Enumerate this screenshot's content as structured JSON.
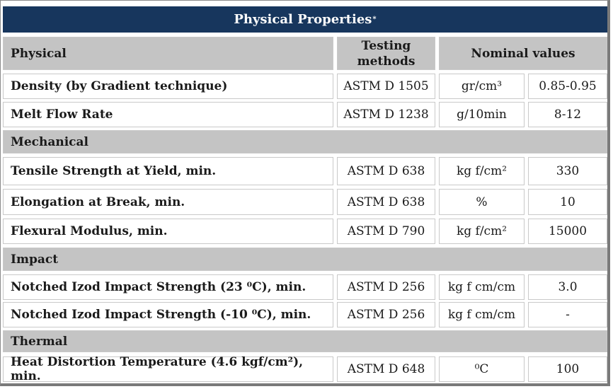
{
  "table": {
    "title": "Physical Properties",
    "title_mark": "*",
    "header": {
      "property": "Physical",
      "method": "Testing methods",
      "values": "Nominal values"
    },
    "sections": [
      {
        "name": "Physical",
        "rows": [
          {
            "property": "Density (by Gradient technique)",
            "method": "ASTM D 1505",
            "unit": "gr/cm³",
            "value": "0.85-0.95"
          },
          {
            "property": "Melt Flow Rate",
            "method": "ASTM D 1238",
            "unit": "g/10min",
            "value": "8-12"
          }
        ]
      },
      {
        "name": "Mechanical",
        "rows": [
          {
            "property": "Tensile Strength at Yield, min.",
            "method": "ASTM D 638",
            "unit": "kg f/cm²",
            "value": "330"
          },
          {
            "property": "Elongation at Break, min.",
            "method": "ASTM D 638",
            "unit": "%",
            "value": "10"
          },
          {
            "property": "Flexural Modulus, min.",
            "method": "ASTM D 790",
            "unit": "kg f/cm²",
            "value": "15000"
          }
        ]
      },
      {
        "name": "Impact",
        "rows": [
          {
            "property": "Notched Izod Impact Strength (23 ⁰C), min.",
            "method": "ASTM D 256",
            "unit": "kg f cm/cm",
            "value": "3.0"
          },
          {
            "property": "Notched Izod Impact Strength (-10 ⁰C), min.",
            "method": "ASTM D 256",
            "unit": "kg f cm/cm",
            "value": "-"
          }
        ]
      },
      {
        "name": "Thermal",
        "rows": [
          {
            "property": "Heat Distortion Temperature (4.6 kgf/cm²), min.",
            "method": "ASTM D 648",
            "unit": "⁰C",
            "value": "100"
          }
        ]
      }
    ]
  }
}
